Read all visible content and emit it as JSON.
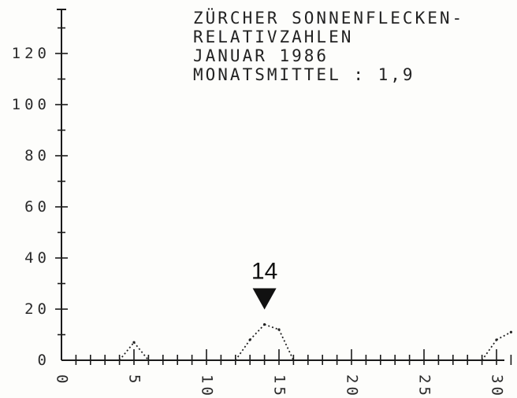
{
  "chart_data": {
    "type": "line",
    "title_lines": [
      "ZÜRCHER SONNENFLECKEN-",
      "RELATIVZAHLEN",
      "JANUAR 1986",
      "MONATSMITTEL : 1,9"
    ],
    "xlabel": "",
    "ylabel": "",
    "xlim": [
      0,
      31
    ],
    "ylim": [
      0,
      130
    ],
    "x_ticks": [
      0,
      5,
      10,
      15,
      20,
      25,
      30
    ],
    "x_tick_labels": [
      "0",
      "5",
      "10",
      "15",
      "20",
      "25",
      "30"
    ],
    "y_ticks": [
      0,
      20,
      40,
      60,
      80,
      100,
      120
    ],
    "y_tick_labels": [
      "0",
      "20",
      "40",
      "60",
      "80",
      "100",
      "120"
    ],
    "grid": false,
    "series": [
      {
        "x": [
          1,
          2,
          3,
          4,
          5,
          6,
          7,
          8,
          9,
          10,
          11,
          12,
          13,
          14,
          15,
          16,
          17,
          18,
          19,
          20,
          21,
          22,
          23,
          24,
          25,
          26,
          27,
          28,
          29,
          30,
          31
        ],
        "values": [
          0,
          0,
          0,
          0,
          7,
          0,
          0,
          0,
          0,
          0,
          0,
          0,
          8,
          14,
          12,
          0,
          0,
          0,
          0,
          0,
          0,
          0,
          0,
          0,
          0,
          0,
          0,
          0,
          0,
          8,
          11
        ]
      }
    ],
    "annotation": {
      "label": "14",
      "x": 14,
      "y": 14
    }
  }
}
